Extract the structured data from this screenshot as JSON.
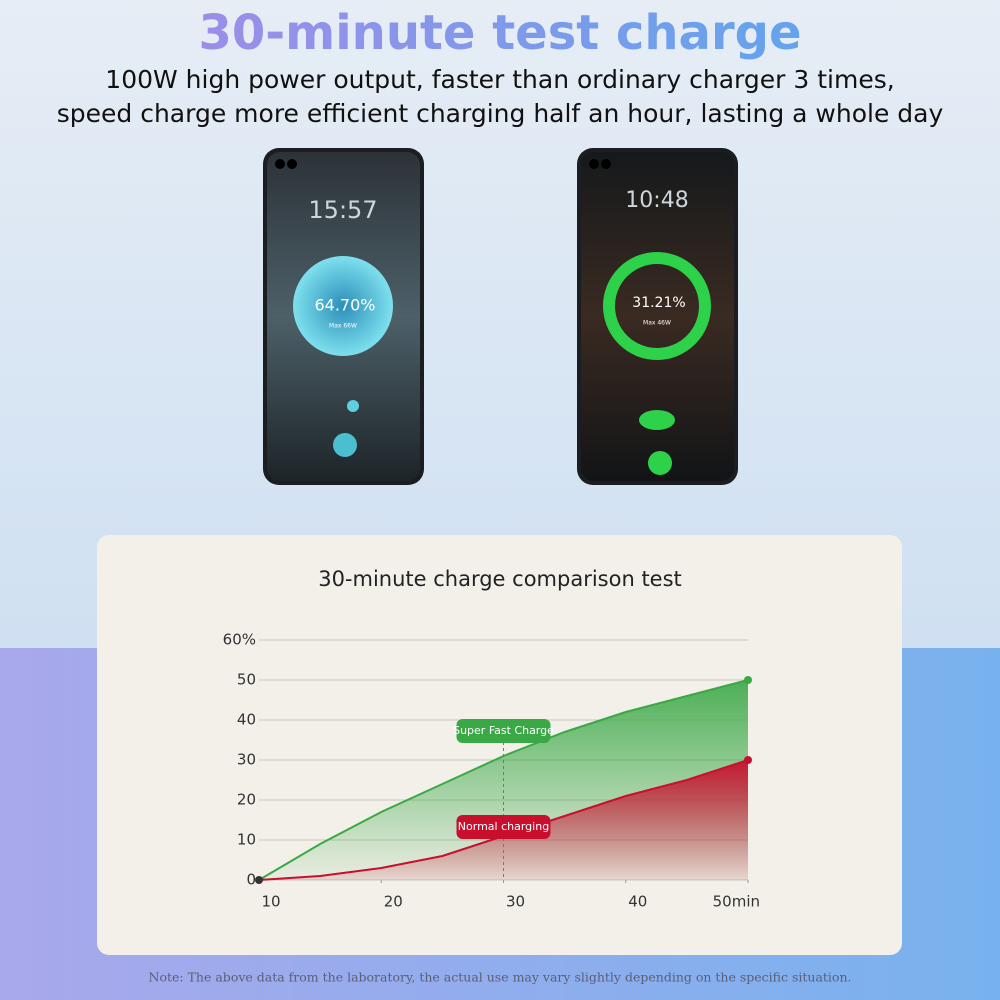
{
  "header": {
    "title": "30-minute test charge",
    "subtitle": [
      "100W high power output, faster than ordinary charger 3 times,",
      "speed charge more efficient charging half an hour, lasting a whole day"
    ]
  },
  "phones": [
    {
      "time": "15:57",
      "percent": "64.70%",
      "max": "Max 66W"
    },
    {
      "time": "10:48",
      "percent": "31.21%",
      "max": "Max 46W"
    }
  ],
  "chart_data": {
    "type": "area",
    "title": "30-minute charge comparison test",
    "x": [
      10,
      15,
      20,
      25,
      30,
      35,
      40,
      45,
      50
    ],
    "series": [
      {
        "name": "Super Fast Charge",
        "color": "#3aa845",
        "values": [
          0,
          9,
          17,
          24,
          31,
          37,
          42,
          46,
          50
        ]
      },
      {
        "name": "Normal charging",
        "color": "#c8102e",
        "values": [
          0,
          1,
          3,
          6,
          11,
          16,
          21,
          25,
          30
        ]
      }
    ],
    "xlim": [
      10,
      50
    ],
    "xticks": [
      10,
      20,
      30,
      40,
      {
        "value": 50,
        "label": "50min"
      }
    ],
    "ylim": [
      0,
      60
    ],
    "yticks": [
      0,
      10,
      20,
      30,
      40,
      50,
      {
        "value": 60,
        "label": "60%"
      }
    ],
    "grid": true,
    "marker_x": 30
  },
  "note": "Note: The above data from the laboratory, the actual use may vary slightly depending on the specific situation."
}
